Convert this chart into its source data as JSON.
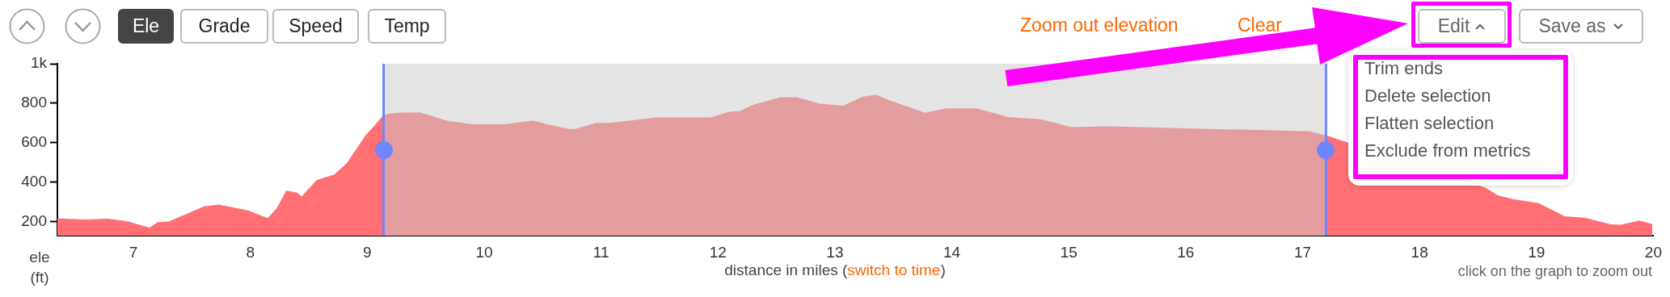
{
  "chart_data": {
    "type": "area",
    "xlabel": "distance in miles (switch to time)",
    "ylabel": "ele (ft)",
    "xlim": [
      6.35,
      20
    ],
    "ylim": [
      130,
      1000
    ],
    "xticks": [
      7,
      8,
      9,
      10,
      11,
      12,
      13,
      14,
      15,
      16,
      17,
      18,
      19,
      20
    ],
    "yticks": [
      200,
      400,
      600,
      800,
      {
        "value": 1000,
        "label": "1k"
      }
    ],
    "grid": false,
    "legend": false,
    "series": [
      {
        "color": "#ff6f73",
        "x": [
          6.35,
          6.58,
          6.78,
          6.96,
          7.14,
          7.21,
          7.3,
          7.61,
          7.73,
          7.98,
          8.15,
          8.23,
          8.31,
          8.4,
          8.44,
          8.57,
          8.72,
          8.83,
          8.89,
          9.0,
          9.06,
          9.14
        ],
        "values": [
          215,
          209,
          213,
          198,
          167,
          195,
          198,
          276,
          284,
          255,
          215,
          267,
          355,
          344,
          325,
          409,
          436,
          495,
          549,
          644,
          680,
          738
        ]
      },
      {
        "color": "#e49d9f",
        "x": [
          9.14,
          9.25,
          9.45,
          9.68,
          9.9,
          10.17,
          10.42,
          10.54,
          10.72,
          10.78,
          10.96,
          11.09,
          11.47,
          11.94,
          12.09,
          12.19,
          12.31,
          12.53,
          12.68,
          12.87,
          13.07,
          13.24,
          13.35,
          13.46,
          13.77,
          13.95,
          14.21,
          14.48,
          14.76,
          15.02,
          15.33,
          17.06,
          17.2
        ],
        "values": [
          740,
          749,
          751,
          709,
          691,
          691,
          709,
          691,
          667,
          667,
          698,
          698,
          725,
          725,
          753,
          758,
          791,
          827,
          827,
          795,
          785,
          831,
          840,
          813,
          749,
          771,
          771,
          727,
          716,
          676,
          680,
          655,
          635
        ]
      },
      {
        "color": "#ff6f73",
        "x": [
          17.2,
          18.56,
          18.67,
          18.79,
          19.02,
          19.24,
          19.41,
          19.63,
          19.72,
          19.88,
          19.99
        ],
        "values": [
          635,
          370,
          331,
          313,
          291,
          225,
          218,
          185,
          182,
          204,
          185
        ]
      }
    ],
    "bands": [
      {
        "axis": "x",
        "from": 9.14,
        "to": 17.2,
        "color": "#e4e4e4"
      }
    ],
    "ref_lines": [
      {
        "axis": "x",
        "value": 9.14,
        "color": "#6f86ff"
      },
      {
        "axis": "x",
        "value": 17.2,
        "color": "#6f86ff"
      }
    ],
    "annotations": [
      "Ele",
      "Grade",
      "Speed",
      "Temp",
      "Zoom out elevation",
      "Clear",
      "Edit",
      "Save as",
      "Trim ends",
      "Delete selection",
      "Flatten selection",
      "Exclude from metrics",
      "click on the graph to zoom out"
    ]
  }
}
